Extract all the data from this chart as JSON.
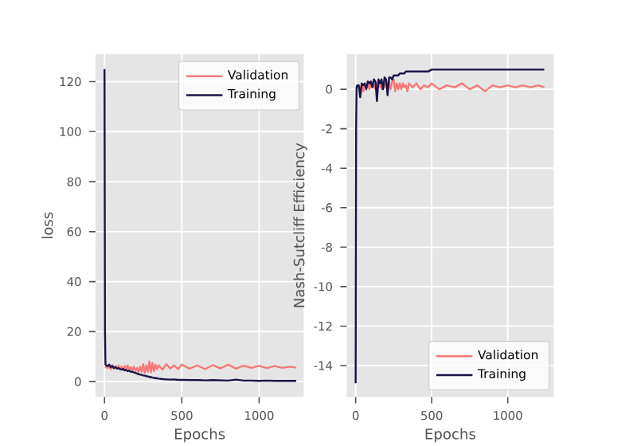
{
  "chart_data": [
    {
      "type": "line",
      "xlabel": "Epochs",
      "ylabel": "loss",
      "xlim": [
        -58,
        1288
      ],
      "ylim": [
        -6.2,
        131
      ],
      "xticks": [
        0,
        500,
        1000
      ],
      "yticks": [
        0,
        20,
        40,
        60,
        80,
        100,
        120
      ],
      "grid": true,
      "legend": "top right",
      "x": [
        0,
        3,
        6,
        10,
        20,
        30,
        40,
        50,
        60,
        70,
        80,
        90,
        100,
        110,
        120,
        130,
        140,
        150,
        160,
        170,
        180,
        190,
        200,
        210,
        220,
        230,
        240,
        250,
        260,
        270,
        280,
        290,
        300,
        310,
        320,
        330,
        340,
        350,
        375,
        400,
        425,
        450,
        475,
        500,
        550,
        600,
        650,
        700,
        750,
        800,
        850,
        900,
        950,
        1000,
        1050,
        1100,
        1150,
        1200,
        1240
      ],
      "series": [
        {
          "name": "Validation",
          "color": "#f87878",
          "values": [
            null,
            null,
            6,
            5.8,
            5.5,
            6.2,
            5.0,
            6.5,
            5.2,
            6.0,
            5.3,
            6.4,
            5.1,
            6.0,
            4.8,
            6.2,
            5.0,
            6.5,
            4.6,
            5.8,
            4.5,
            6.0,
            4.2,
            5.5,
            3.8,
            6.0,
            4.0,
            7.0,
            3.5,
            6.5,
            4.0,
            8.0,
            3.8,
            7.5,
            4.2,
            6.8,
            5.0,
            6.5,
            4.8,
            7.0,
            5.2,
            6.5,
            5.0,
            6.8,
            5.2,
            6.5,
            5.0,
            6.6,
            5.3,
            6.8,
            5.2,
            6.4,
            5.5,
            6.3,
            5.4,
            6.2,
            5.5,
            6.0,
            5.6
          ]
        },
        {
          "name": "Training",
          "color": "#1a1446",
          "values": [
            125,
            20,
            7,
            6.5,
            6.2,
            6.8,
            5.8,
            6.3,
            5.5,
            5.9,
            5.2,
            5.4,
            5.0,
            4.8,
            5.1,
            4.5,
            4.7,
            4.2,
            4.4,
            3.9,
            4.0,
            3.6,
            3.5,
            3.2,
            3.0,
            2.8,
            2.7,
            2.5,
            2.4,
            2.2,
            2.1,
            1.9,
            1.8,
            1.6,
            1.5,
            1.4,
            1.3,
            1.2,
            1.0,
            0.9,
            0.8,
            0.9,
            0.7,
            0.7,
            0.6,
            0.6,
            0.5,
            0.6,
            0.5,
            0.4,
            0.8,
            0.4,
            0.4,
            0.3,
            0.4,
            0.3,
            0.3,
            0.3,
            0.3
          ]
        }
      ]
    },
    {
      "type": "line",
      "xlabel": "Epochs",
      "ylabel": "Nash-Sutcliff Efficiency",
      "xlim": [
        -59,
        1302
      ],
      "ylim": [
        -15.6,
        1.78
      ],
      "xticks": [
        0,
        500,
        1000
      ],
      "yticks": [
        -14,
        -12,
        -10,
        -8,
        -6,
        -4,
        -2,
        0
      ],
      "grid": true,
      "legend": "bottom right",
      "x": [
        0,
        3,
        6,
        10,
        20,
        30,
        40,
        50,
        60,
        70,
        80,
        90,
        100,
        110,
        120,
        130,
        140,
        150,
        160,
        170,
        180,
        190,
        200,
        210,
        220,
        230,
        240,
        250,
        260,
        270,
        280,
        290,
        300,
        310,
        320,
        330,
        340,
        350,
        375,
        400,
        425,
        450,
        475,
        500,
        550,
        600,
        650,
        700,
        750,
        800,
        850,
        900,
        950,
        1000,
        1050,
        1100,
        1150,
        1200,
        1240
      ],
      "series": [
        {
          "name": "Validation",
          "color": "#f87878",
          "values": [
            null,
            null,
            null,
            0.1,
            0.2,
            0.0,
            0.2,
            -0.1,
            0.2,
            0.1,
            0.3,
            0.0,
            0.3,
            0.1,
            0.2,
            0.0,
            0.3,
            0.1,
            0.3,
            0.0,
            0.3,
            0.1,
            0.4,
            0.1,
            0.4,
            0.0,
            0.4,
            0.5,
            -0.1,
            0.3,
            0.0,
            0.3,
            0.0,
            0.3,
            0.1,
            0.2,
            -0.1,
            0.3,
            0.1,
            0.3,
            0.0,
            0.2,
            0.1,
            0.3,
            0.0,
            0.2,
            0.1,
            0.3,
            0.0,
            0.2,
            -0.1,
            0.2,
            0.1,
            0.2,
            0.1,
            0.2,
            0.1,
            0.2,
            0.1
          ]
        },
        {
          "name": "Training",
          "color": "#1a1446",
          "values": [
            -14.9,
            -2,
            0.1,
            0.2,
            0.2,
            -0.4,
            0.3,
            0.2,
            0.3,
            0.0,
            0.4,
            0.3,
            0.4,
            0.1,
            0.5,
            0.4,
            -0.6,
            0.5,
            0.3,
            0.5,
            0.0,
            0.6,
            0.5,
            -0.3,
            0.6,
            0.6,
            0.5,
            0.7,
            0.7,
            0.7,
            0.7,
            0.8,
            0.8,
            0.8,
            0.8,
            0.9,
            0.9,
            0.9,
            0.9,
            0.9,
            0.9,
            0.9,
            0.9,
            1.0,
            1.0,
            1.0,
            1.0,
            1.0,
            1.0,
            1.0,
            1.0,
            1.0,
            1.0,
            1.0,
            1.0,
            1.0,
            1.0,
            1.0,
            1.0
          ]
        }
      ]
    }
  ]
}
